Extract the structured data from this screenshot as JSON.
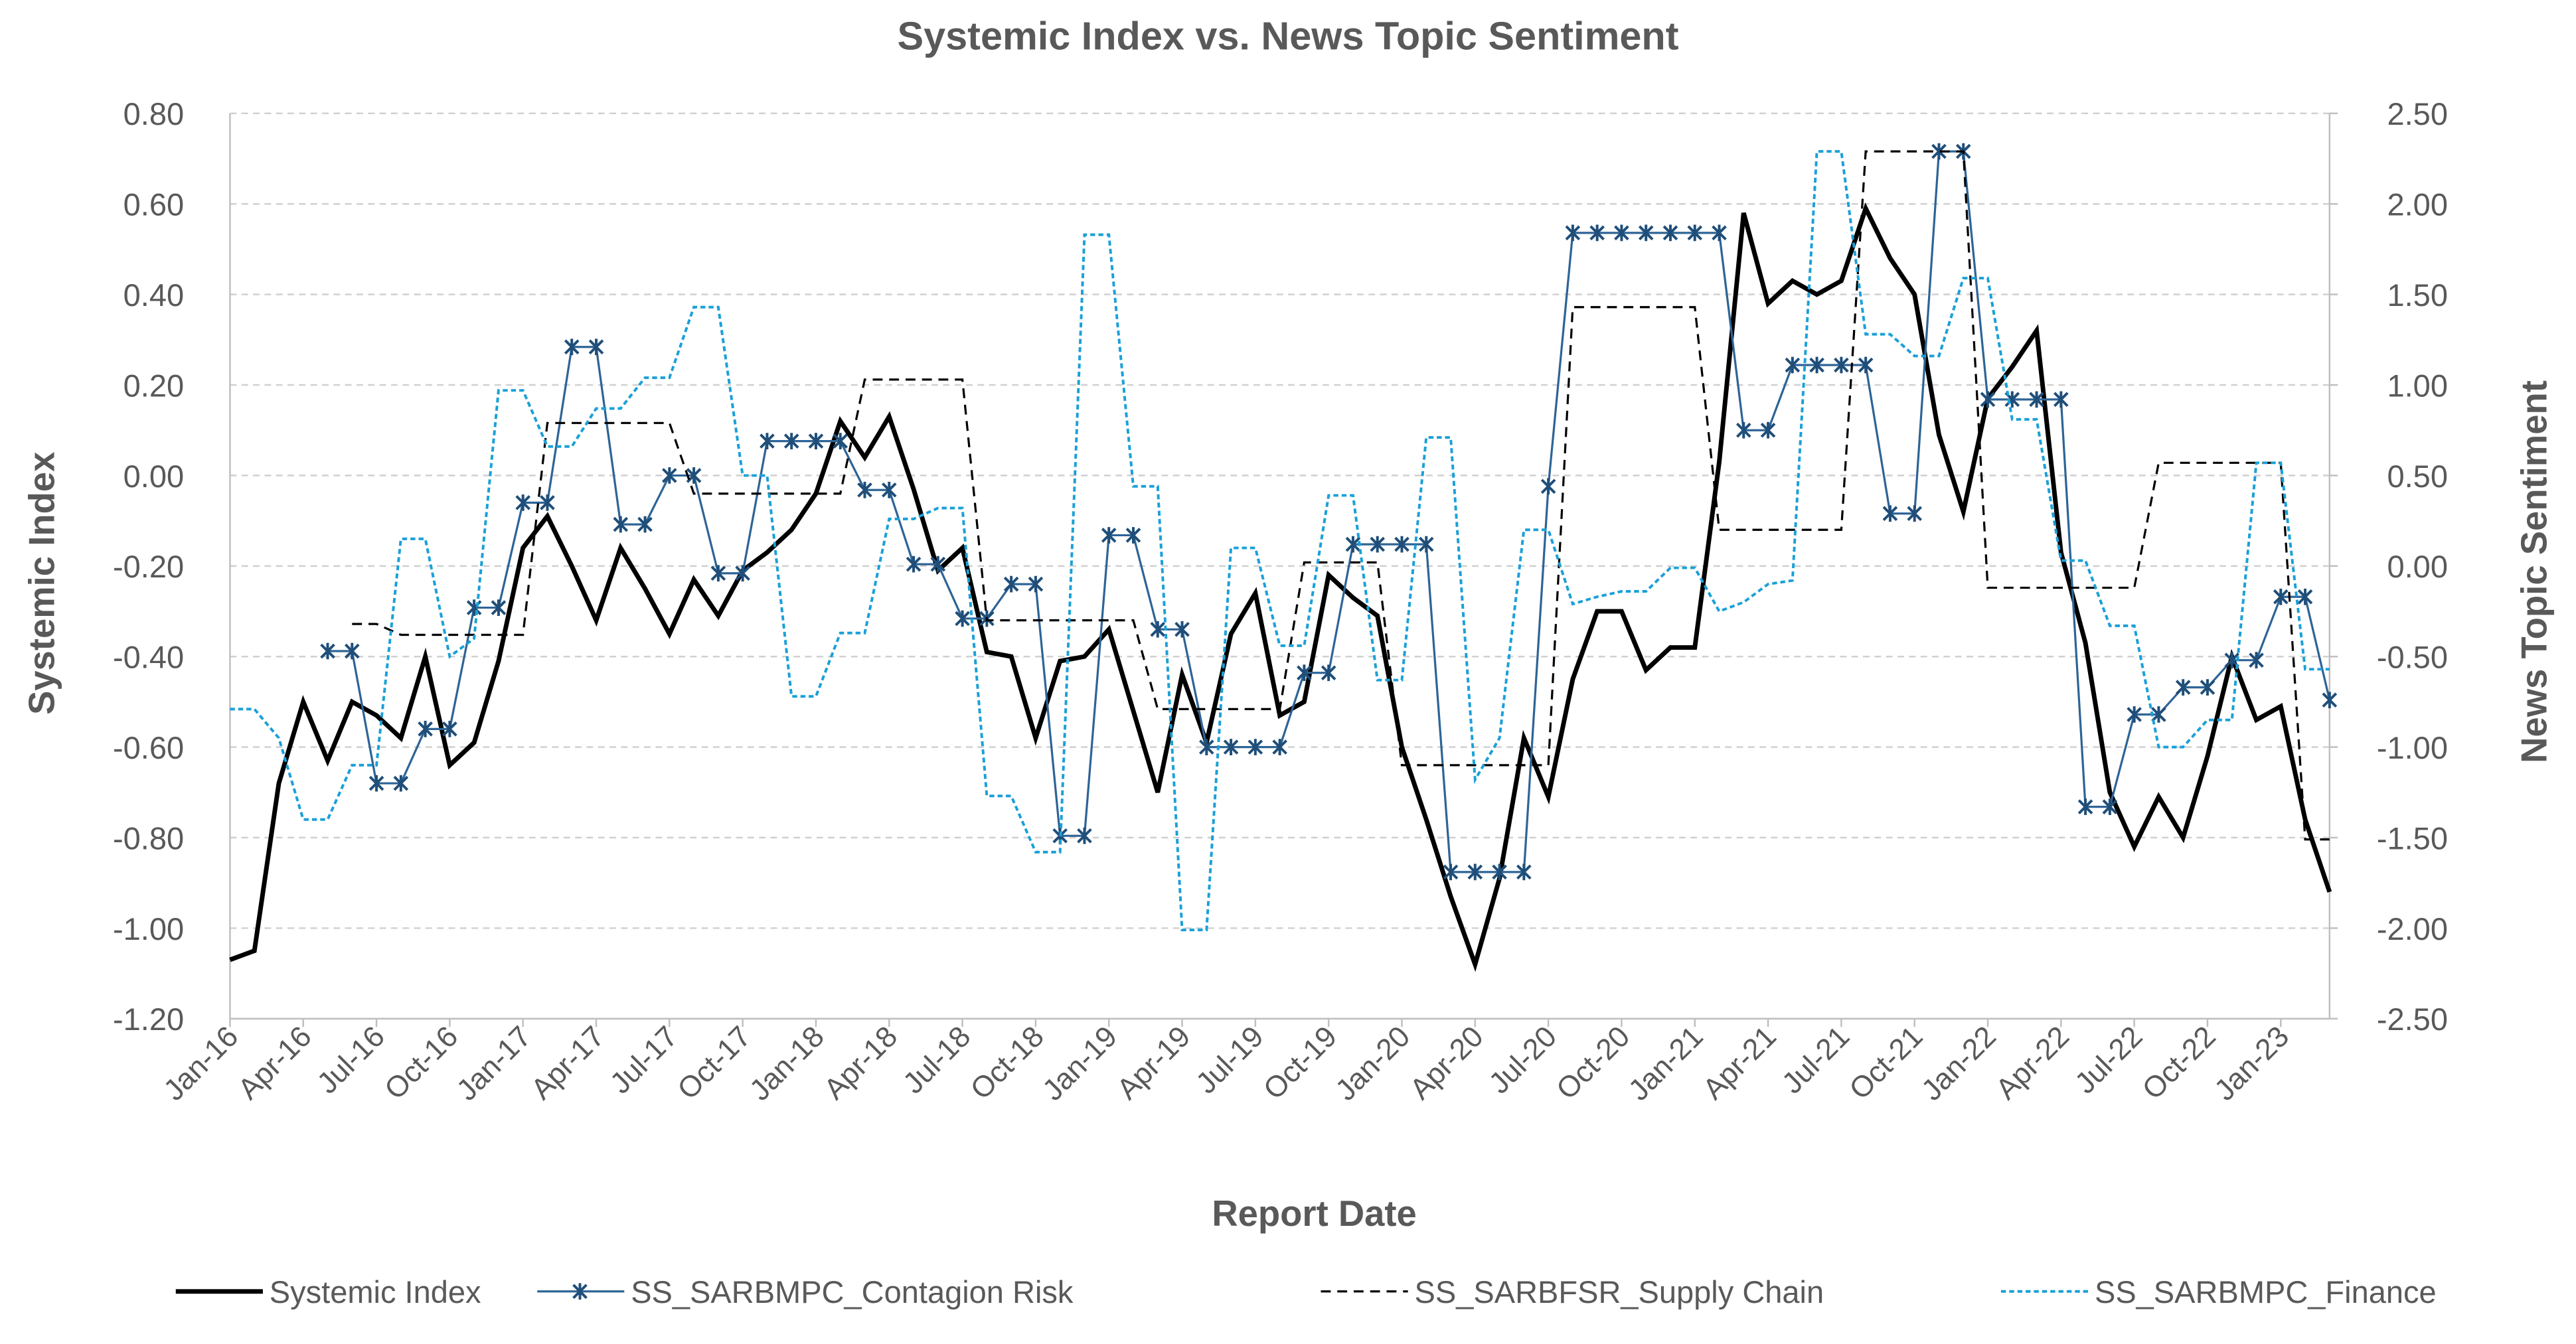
{
  "chart_data": {
    "type": "line",
    "title": "Systemic Index vs. News Topic Sentiment",
    "x_label": "Report Date",
    "y_label": "Systemic Index",
    "y2_label": "News Topic Sentiment",
    "categories": [
      "Jan-16",
      null,
      null,
      "Apr-16",
      null,
      null,
      "Jul-16",
      null,
      null,
      "Oct-16",
      null,
      null,
      "Jan-17",
      null,
      null,
      "Apr-17",
      null,
      null,
      "Jul-17",
      null,
      null,
      "Oct-17",
      null,
      null,
      "Jan-18",
      null,
      null,
      "Apr-18",
      null,
      null,
      "Jul-18",
      null,
      null,
      "Oct-18",
      null,
      null,
      "Jan-19",
      null,
      null,
      "Apr-19",
      null,
      null,
      "Jul-19",
      null,
      null,
      "Oct-19",
      null,
      null,
      "Jan-20",
      null,
      null,
      "Apr-20",
      null,
      null,
      "Jul-20",
      null,
      null,
      "Oct-20",
      null,
      null,
      "Jan-21",
      null,
      null,
      "Apr-21",
      null,
      null,
      "Jul-21",
      null,
      null,
      "Oct-21",
      null,
      null,
      "Jan-22",
      null,
      null,
      "Apr-22",
      null,
      null,
      "Jul-22",
      null,
      null,
      "Oct-22",
      null,
      null,
      "Jan-23",
      null,
      null
    ],
    "ylim": [
      -1.2,
      0.8
    ],
    "yticks": [
      {
        "value": -1.2,
        "label": "-1.20"
      },
      {
        "value": -1.0,
        "label": "-1.00"
      },
      {
        "value": -0.8,
        "label": "-0.80"
      },
      {
        "value": -0.6,
        "label": "-0.60"
      },
      {
        "value": -0.4,
        "label": "-0.40"
      },
      {
        "value": -0.2,
        "label": "-0.20"
      },
      {
        "value": 0,
        "label": "0.00"
      },
      {
        "value": 0.2,
        "label": "0.20"
      },
      {
        "value": 0.4,
        "label": "0.40"
      },
      {
        "value": 0.6,
        "label": "0.60"
      },
      {
        "value": 0.8,
        "label": "0.80"
      }
    ],
    "y2lim": [
      -2.5,
      2.5
    ],
    "y2ticks": [
      {
        "value": -2.5,
        "label": "-2.50"
      },
      {
        "value": -2.0,
        "label": "-2.00"
      },
      {
        "value": -1.5,
        "label": "-1.50"
      },
      {
        "value": -1.0,
        "label": "-1.00"
      },
      {
        "value": -0.5,
        "label": "-0.50"
      },
      {
        "value": 0,
        "label": "0.00"
      },
      {
        "value": 0.5,
        "label": "0.50"
      },
      {
        "value": 1.0,
        "label": "1.00"
      },
      {
        "value": 1.5,
        "label": "1.50"
      },
      {
        "value": 2.0,
        "label": "2.00"
      },
      {
        "value": 2.5,
        "label": "2.50"
      }
    ],
    "grid": true,
    "legend": "bottom",
    "series": [
      {
        "name": "Systemic Index",
        "color": "#000000",
        "style": "solid",
        "values": [
          -1.07,
          -1.05,
          -0.68,
          -0.5,
          -0.63,
          -0.5,
          -0.53,
          -0.58,
          -0.4,
          -0.64,
          -0.59,
          -0.41,
          -0.16,
          -0.09,
          -0.2,
          -0.32,
          -0.16,
          -0.25,
          -0.35,
          -0.23,
          -0.31,
          -0.21,
          -0.17,
          -0.12,
          -0.04,
          0.12,
          0.04,
          0.13,
          -0.03,
          -0.21,
          -0.16,
          -0.39,
          -0.4,
          -0.58,
          -0.41,
          -0.4,
          -0.34,
          -0.52,
          -0.7,
          -0.44,
          -0.59,
          -0.35,
          -0.26,
          -0.53,
          -0.5,
          -0.22,
          -0.27,
          -0.31,
          -0.6,
          -0.76,
          -0.93,
          -1.08,
          -0.89,
          -0.58,
          -0.71,
          -0.45,
          -0.3,
          -0.3,
          -0.43,
          -0.38,
          -0.38,
          0.03,
          0.58,
          0.38,
          0.43,
          0.4,
          0.43,
          0.59,
          0.48,
          0.4,
          0.09,
          -0.08,
          0.17,
          0.24,
          0.32,
          -0.17,
          -0.37,
          -0.7,
          -0.82,
          -0.71,
          -0.8,
          -0.62,
          -0.4,
          -0.54,
          -0.51,
          -0.76,
          -0.92
        ]
      },
      {
        "name": "SS_SARBMPC_Contagion Risk",
        "color": "#2e6496",
        "style": "solid",
        "marker": "asterisk",
        "axis": "y2",
        "values": [
          null,
          null,
          null,
          null,
          -0.47,
          -0.47,
          -1.2,
          -1.2,
          -0.9,
          -0.9,
          -0.23,
          -0.23,
          0.35,
          0.35,
          1.21,
          1.21,
          0.23,
          0.23,
          0.5,
          0.5,
          -0.04,
          -0.04,
          0.69,
          0.69,
          0.69,
          0.69,
          0.42,
          0.42,
          0.01,
          0.01,
          -0.29,
          -0.29,
          -0.1,
          -0.1,
          -1.49,
          -1.49,
          0.17,
          0.17,
          -0.35,
          -0.35,
          -1.0,
          -1.0,
          -1.0,
          -1.0,
          -0.59,
          -0.59,
          0.12,
          0.12,
          0.12,
          0.12,
          -1.69,
          -1.69,
          -1.69,
          -1.69,
          0.44,
          1.84,
          1.84,
          1.84,
          1.84,
          1.84,
          1.84,
          1.84,
          0.75,
          0.75,
          1.11,
          1.11,
          1.11,
          1.11,
          0.29,
          0.29,
          2.29,
          2.29,
          0.92,
          0.92,
          0.92,
          0.92,
          -1.33,
          -1.33,
          -0.82,
          -0.82,
          -0.67,
          -0.67,
          -0.52,
          -0.52,
          -0.17,
          -0.17,
          -0.74
        ]
      },
      {
        "name": "SS_SARBFSR_Supply Chain",
        "color": "#000000",
        "style": "dashed",
        "axis": "y2",
        "values": [
          null,
          null,
          null,
          null,
          null,
          -0.32,
          -0.32,
          -0.38,
          -0.38,
          -0.38,
          -0.38,
          -0.38,
          -0.38,
          0.79,
          0.79,
          0.79,
          0.79,
          0.79,
          0.79,
          0.4,
          0.4,
          0.4,
          0.4,
          0.4,
          0.4,
          0.4,
          1.03,
          1.03,
          1.03,
          1.03,
          1.03,
          -0.3,
          -0.3,
          -0.3,
          -0.3,
          -0.3,
          -0.3,
          -0.3,
          -0.79,
          -0.79,
          -0.79,
          -0.79,
          -0.79,
          -0.79,
          0.02,
          0.02,
          0.02,
          0.02,
          -1.1,
          -1.1,
          -1.1,
          -1.1,
          -1.1,
          -1.1,
          -1.1,
          1.43,
          1.43,
          1.43,
          1.43,
          1.43,
          1.43,
          0.2,
          0.2,
          0.2,
          0.2,
          0.2,
          0.2,
          2.29,
          2.29,
          2.29,
          2.29,
          2.29,
          -0.12,
          -0.12,
          -0.12,
          -0.12,
          -0.12,
          -0.12,
          -0.12,
          0.57,
          0.57,
          0.57,
          0.57,
          0.57,
          0.57,
          -1.51,
          -1.51
        ]
      },
      {
        "name": "SS_SARBMPC_Finance",
        "color": "#1aa0d8",
        "style": "dotted",
        "axis": "y2",
        "values": [
          -0.79,
          -0.79,
          -0.95,
          -1.4,
          -1.4,
          -1.1,
          -1.1,
          0.15,
          0.15,
          -0.5,
          -0.4,
          0.97,
          0.97,
          0.66,
          0.66,
          0.87,
          0.87,
          1.04,
          1.04,
          1.43,
          1.43,
          0.5,
          0.5,
          -0.72,
          -0.72,
          -0.37,
          -0.37,
          0.26,
          0.26,
          0.32,
          0.32,
          -1.27,
          -1.27,
          -1.58,
          -1.58,
          1.83,
          1.83,
          0.44,
          0.44,
          -2.01,
          -2.01,
          0.1,
          0.1,
          -0.44,
          -0.44,
          0.39,
          0.39,
          -0.63,
          -0.63,
          0.71,
          0.71,
          -1.18,
          -0.95,
          0.2,
          0.2,
          -0.21,
          -0.17,
          -0.14,
          -0.14,
          -0.01,
          -0.01,
          -0.25,
          -0.2,
          -0.1,
          -0.08,
          2.29,
          2.29,
          1.28,
          1.28,
          1.16,
          1.16,
          1.59,
          1.59,
          0.81,
          0.81,
          0.03,
          0.03,
          -0.33,
          -0.33,
          -1.0,
          -1.0,
          -0.85,
          -0.85,
          0.57,
          0.57,
          -0.57,
          -0.57
        ]
      }
    ]
  }
}
